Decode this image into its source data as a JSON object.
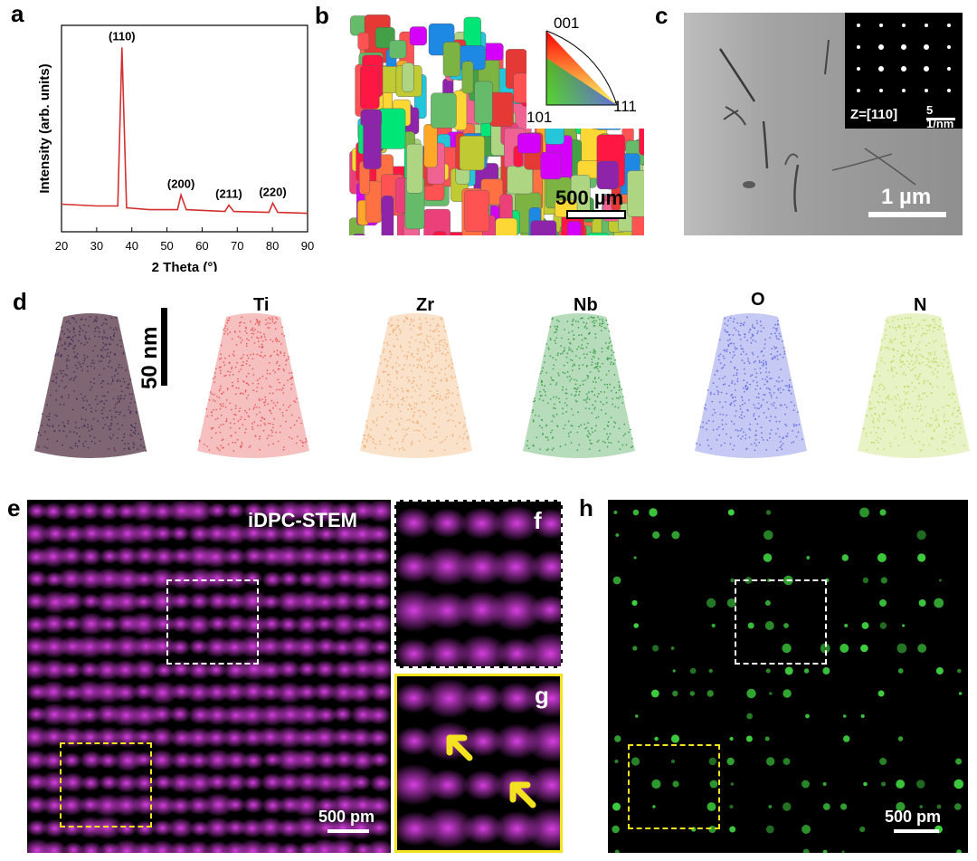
{
  "panels": {
    "a": "a",
    "b": "b",
    "c": "c",
    "d": "d",
    "e": "e",
    "f": "f",
    "g": "g",
    "h": "h"
  },
  "chart_data": {
    "type": "line",
    "xlabel": "2 Theta (°)",
    "ylabel": "Intensity (arb. units)",
    "xlim": [
      20,
      90
    ],
    "ticks_x": [
      "20",
      "30",
      "40",
      "50",
      "60",
      "70",
      "80",
      "90"
    ],
    "x": [
      20,
      30,
      36,
      37.2,
      38.5,
      45,
      53,
      54,
      55.5,
      66.5,
      67.6,
      69,
      79,
      80.1,
      81.5,
      90
    ],
    "y": [
      0.15,
      0.14,
      0.14,
      1.0,
      0.13,
      0.12,
      0.12,
      0.2,
      0.12,
      0.11,
      0.145,
      0.11,
      0.105,
      0.155,
      0.105,
      0.1
    ],
    "peaks": [
      {
        "x": 37.2,
        "label": "(110)"
      },
      {
        "x": 54,
        "label": "(200)"
      },
      {
        "x": 67.6,
        "label": "(211)"
      },
      {
        "x": 80.1,
        "label": "(220)"
      }
    ],
    "color": "#d32f2f"
  },
  "ebsd": {
    "ipf": {
      "top": "001",
      "left": "101",
      "right": "111"
    },
    "scalebar": "500 µm"
  },
  "tem": {
    "zone": "Z=[110]",
    "inset_scale": "5 1/nm",
    "scalebar": "1 µm"
  },
  "apt": {
    "scalebar": "50 nm",
    "elements": [
      {
        "label": "",
        "color": "#6a4a5a"
      },
      {
        "label": "Ti",
        "color": "#e54b4b"
      },
      {
        "label": "Zr",
        "color": "#f0a868"
      },
      {
        "label": "Nb",
        "color": "#2e9a3c"
      },
      {
        "label": "O",
        "color": "#5a63e0"
      },
      {
        "label": "N",
        "color": "#b9d95a"
      }
    ]
  },
  "stem": {
    "title": "iDPC-STEM",
    "scalebar_e": "500 pm",
    "scalebar_h": "500 pm"
  }
}
